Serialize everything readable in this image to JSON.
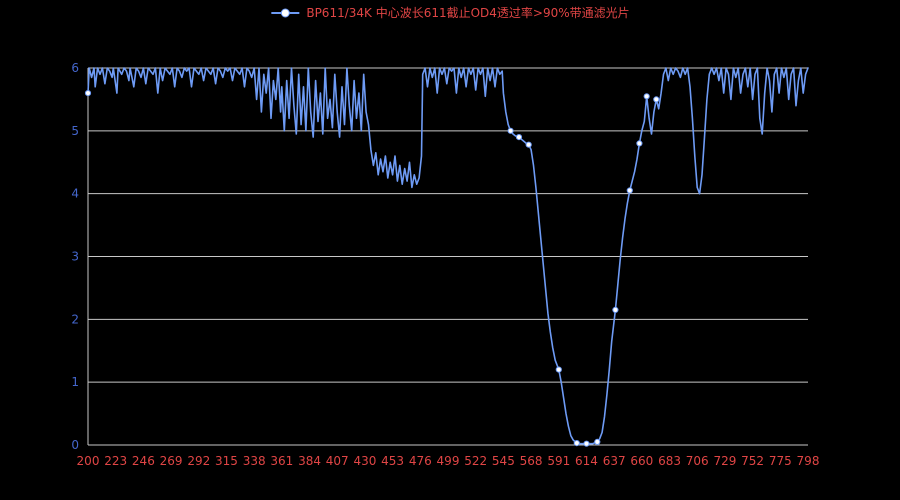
{
  "legend": {
    "label": "BP611/34K 中心波长611截止OD4透过率>90%带通滤光片"
  },
  "chart_data": {
    "type": "line",
    "title": "BP611/34K 中心波长611截止OD4透过率>90%带通滤光片",
    "xlabel": "",
    "ylabel": "",
    "xlim": [
      200,
      798
    ],
    "ylim": [
      0,
      6
    ],
    "grid": "horizontal",
    "legend_position": "top-center",
    "xticks": [
      200,
      223,
      246,
      269,
      292,
      315,
      338,
      361,
      384,
      407,
      430,
      453,
      476,
      499,
      522,
      545,
      568,
      591,
      614,
      637,
      660,
      683,
      706,
      729,
      752,
      775,
      798
    ],
    "yticks": [
      0,
      1,
      2,
      3,
      4,
      5,
      6
    ],
    "colors": {
      "background": "#000000",
      "line": "#6e9bf5",
      "marker_fill": "#ffffff",
      "grid": "#c8c8c8",
      "ytick": "#4466cc",
      "xtick": "#e04545",
      "legend_text": "#e04545"
    },
    "series": [
      {
        "name": "BP611/34K 中心波长611截止OD4透过率>90%带通滤光片",
        "points": [
          [
            200,
            5.6
          ],
          [
            201,
            6
          ],
          [
            203,
            5.85
          ],
          [
            205,
            6
          ],
          [
            206,
            5.7
          ],
          [
            208,
            6
          ],
          [
            210,
            5.9
          ],
          [
            212,
            6
          ],
          [
            214,
            5.75
          ],
          [
            216,
            6
          ],
          [
            218,
            5.95
          ],
          [
            220,
            5.85
          ],
          [
            221,
            6
          ],
          [
            224,
            5.6
          ],
          [
            225,
            6
          ],
          [
            228,
            5.9
          ],
          [
            230,
            6
          ],
          [
            232,
            5.95
          ],
          [
            234,
            5.8
          ],
          [
            235,
            6
          ],
          [
            238,
            5.7
          ],
          [
            240,
            6
          ],
          [
            242,
            5.95
          ],
          [
            244,
            5.85
          ],
          [
            246,
            6
          ],
          [
            248,
            5.75
          ],
          [
            250,
            6
          ],
          [
            252,
            5.95
          ],
          [
            254,
            5.9
          ],
          [
            256,
            6
          ],
          [
            258,
            5.6
          ],
          [
            260,
            6
          ],
          [
            262,
            5.8
          ],
          [
            264,
            6
          ],
          [
            266,
            5.95
          ],
          [
            268,
            5.9
          ],
          [
            270,
            6
          ],
          [
            272,
            5.7
          ],
          [
            274,
            6
          ],
          [
            276,
            5.95
          ],
          [
            278,
            5.85
          ],
          [
            280,
            6
          ],
          [
            282,
            5.95
          ],
          [
            284,
            6
          ],
          [
            286,
            5.7
          ],
          [
            288,
            6
          ],
          [
            290,
            5.95
          ],
          [
            292,
            5.9
          ],
          [
            294,
            6
          ],
          [
            296,
            5.8
          ],
          [
            298,
            6
          ],
          [
            300,
            5.95
          ],
          [
            302,
            5.9
          ],
          [
            304,
            6
          ],
          [
            306,
            5.75
          ],
          [
            308,
            6
          ],
          [
            310,
            5.95
          ],
          [
            312,
            5.85
          ],
          [
            314,
            6
          ],
          [
            316,
            5.95
          ],
          [
            318,
            6
          ],
          [
            320,
            5.8
          ],
          [
            322,
            6
          ],
          [
            324,
            5.95
          ],
          [
            326,
            5.9
          ],
          [
            328,
            6
          ],
          [
            330,
            5.7
          ],
          [
            332,
            6
          ],
          [
            334,
            5.95
          ],
          [
            336,
            5.85
          ],
          [
            338,
            6
          ],
          [
            340,
            5.5
          ],
          [
            342,
            6
          ],
          [
            344,
            5.3
          ],
          [
            346,
            5.9
          ],
          [
            348,
            5.6
          ],
          [
            350,
            6
          ],
          [
            352,
            5.2
          ],
          [
            354,
            5.8
          ],
          [
            356,
            5.5
          ],
          [
            358,
            6
          ],
          [
            360,
            5.3
          ],
          [
            361,
            5.7
          ],
          [
            363,
            5.0
          ],
          [
            365,
            5.8
          ],
          [
            367,
            5.2
          ],
          [
            369,
            6
          ],
          [
            371,
            5.4
          ],
          [
            373,
            4.95
          ],
          [
            375,
            5.9
          ],
          [
            377,
            5.1
          ],
          [
            379,
            5.7
          ],
          [
            381,
            5.0
          ],
          [
            383,
            6
          ],
          [
            385,
            5.3
          ],
          [
            387,
            4.9
          ],
          [
            389,
            5.8
          ],
          [
            391,
            5.15
          ],
          [
            393,
            5.6
          ],
          [
            395,
            4.95
          ],
          [
            397,
            6
          ],
          [
            399,
            5.2
          ],
          [
            401,
            5.5
          ],
          [
            403,
            5.05
          ],
          [
            405,
            5.9
          ],
          [
            407,
            5.3
          ],
          [
            409,
            4.9
          ],
          [
            411,
            5.7
          ],
          [
            413,
            5.1
          ],
          [
            415,
            6
          ],
          [
            417,
            5.4
          ],
          [
            419,
            5.0
          ],
          [
            421,
            5.8
          ],
          [
            423,
            5.2
          ],
          [
            425,
            5.6
          ],
          [
            427,
            5.0
          ],
          [
            429,
            5.9
          ],
          [
            431,
            5.3
          ],
          [
            433,
            5.1
          ],
          [
            435,
            4.7
          ],
          [
            437,
            4.45
          ],
          [
            439,
            4.65
          ],
          [
            441,
            4.3
          ],
          [
            443,
            4.55
          ],
          [
            445,
            4.35
          ],
          [
            447,
            4.6
          ],
          [
            449,
            4.25
          ],
          [
            451,
            4.5
          ],
          [
            453,
            4.3
          ],
          [
            455,
            4.6
          ],
          [
            457,
            4.2
          ],
          [
            459,
            4.45
          ],
          [
            461,
            4.15
          ],
          [
            463,
            4.4
          ],
          [
            465,
            4.2
          ],
          [
            467,
            4.5
          ],
          [
            469,
            4.1
          ],
          [
            471,
            4.3
          ],
          [
            473,
            4.15
          ],
          [
            475,
            4.25
          ],
          [
            477,
            4.6
          ],
          [
            478,
            5.9
          ],
          [
            480,
            6
          ],
          [
            482,
            5.7
          ],
          [
            484,
            6
          ],
          [
            486,
            5.85
          ],
          [
            488,
            6
          ],
          [
            490,
            5.6
          ],
          [
            492,
            6
          ],
          [
            494,
            5.9
          ],
          [
            496,
            6
          ],
          [
            498,
            5.75
          ],
          [
            500,
            6
          ],
          [
            502,
            5.95
          ],
          [
            504,
            6
          ],
          [
            506,
            5.6
          ],
          [
            508,
            6
          ],
          [
            510,
            5.85
          ],
          [
            512,
            6
          ],
          [
            514,
            5.7
          ],
          [
            516,
            6
          ],
          [
            518,
            5.9
          ],
          [
            520,
            6
          ],
          [
            522,
            5.65
          ],
          [
            524,
            6
          ],
          [
            526,
            5.9
          ],
          [
            528,
            6
          ],
          [
            530,
            5.55
          ],
          [
            532,
            6
          ],
          [
            534,
            5.8
          ],
          [
            536,
            6
          ],
          [
            538,
            5.7
          ],
          [
            540,
            6
          ],
          [
            542,
            5.9
          ],
          [
            544,
            5.95
          ],
          [
            545,
            5.6
          ],
          [
            547,
            5.3
          ],
          [
            549,
            5.1
          ],
          [
            551,
            5.0
          ],
          [
            553,
            4.95
          ],
          [
            555,
            4.92
          ],
          [
            558,
            4.9
          ],
          [
            561,
            4.85
          ],
          [
            564,
            4.8
          ],
          [
            566,
            4.78
          ],
          [
            568,
            4.7
          ],
          [
            570,
            4.45
          ],
          [
            572,
            4.1
          ],
          [
            574,
            3.7
          ],
          [
            576,
            3.3
          ],
          [
            578,
            2.9
          ],
          [
            580,
            2.5
          ],
          [
            582,
            2.1
          ],
          [
            584,
            1.8
          ],
          [
            586,
            1.55
          ],
          [
            588,
            1.35
          ],
          [
            591,
            1.2
          ],
          [
            593,
            1.0
          ],
          [
            595,
            0.75
          ],
          [
            597,
            0.5
          ],
          [
            599,
            0.3
          ],
          [
            601,
            0.15
          ],
          [
            603,
            0.08
          ],
          [
            606,
            0.03
          ],
          [
            609,
            0.02
          ],
          [
            614,
            0.02
          ],
          [
            619,
            0.02
          ],
          [
            623,
            0.05
          ],
          [
            625,
            0.1
          ],
          [
            627,
            0.2
          ],
          [
            629,
            0.45
          ],
          [
            631,
            0.8
          ],
          [
            633,
            1.2
          ],
          [
            635,
            1.65
          ],
          [
            638,
            2.15
          ],
          [
            640,
            2.55
          ],
          [
            642,
            2.95
          ],
          [
            644,
            3.3
          ],
          [
            646,
            3.6
          ],
          [
            648,
            3.85
          ],
          [
            650,
            4.05
          ],
          [
            652,
            4.2
          ],
          [
            654,
            4.35
          ],
          [
            656,
            4.55
          ],
          [
            658,
            4.8
          ],
          [
            660,
            5.0
          ],
          [
            662,
            5.15
          ],
          [
            664,
            5.55
          ],
          [
            666,
            5.2
          ],
          [
            668,
            4.95
          ],
          [
            670,
            5.3
          ],
          [
            672,
            5.5
          ],
          [
            674,
            5.35
          ],
          [
            676,
            5.6
          ],
          [
            678,
            5.9
          ],
          [
            680,
            6
          ],
          [
            682,
            5.8
          ],
          [
            684,
            6
          ],
          [
            686,
            5.9
          ],
          [
            688,
            6
          ],
          [
            690,
            5.95
          ],
          [
            692,
            5.85
          ],
          [
            694,
            6
          ],
          [
            696,
            5.9
          ],
          [
            698,
            6
          ],
          [
            700,
            5.7
          ],
          [
            702,
            5.2
          ],
          [
            704,
            4.6
          ],
          [
            706,
            4.1
          ],
          [
            708,
            4.0
          ],
          [
            710,
            4.3
          ],
          [
            712,
            4.9
          ],
          [
            714,
            5.5
          ],
          [
            716,
            5.9
          ],
          [
            718,
            6
          ],
          [
            720,
            5.9
          ],
          [
            722,
            6
          ],
          [
            724,
            5.8
          ],
          [
            726,
            6
          ],
          [
            728,
            5.6
          ],
          [
            730,
            6
          ],
          [
            732,
            5.9
          ],
          [
            734,
            5.5
          ],
          [
            736,
            6
          ],
          [
            738,
            5.85
          ],
          [
            740,
            6
          ],
          [
            742,
            5.6
          ],
          [
            744,
            5.9
          ],
          [
            746,
            6
          ],
          [
            748,
            5.7
          ],
          [
            750,
            6
          ],
          [
            752,
            5.5
          ],
          [
            754,
            5.9
          ],
          [
            756,
            6
          ],
          [
            758,
            5.2
          ],
          [
            760,
            4.95
          ],
          [
            762,
            5.6
          ],
          [
            764,
            6
          ],
          [
            766,
            5.8
          ],
          [
            768,
            5.3
          ],
          [
            770,
            5.9
          ],
          [
            772,
            6
          ],
          [
            774,
            5.6
          ],
          [
            776,
            6
          ],
          [
            778,
            5.85
          ],
          [
            780,
            6
          ],
          [
            782,
            5.5
          ],
          [
            784,
            5.9
          ],
          [
            786,
            6
          ],
          [
            788,
            5.4
          ],
          [
            790,
            5.8
          ],
          [
            792,
            6
          ],
          [
            794,
            5.6
          ],
          [
            796,
            5.9
          ],
          [
            798,
            6
          ]
        ],
        "markers": [
          [
            200,
            5.6
          ],
          [
            551,
            5.0
          ],
          [
            558,
            4.9
          ],
          [
            566,
            4.78
          ],
          [
            591,
            1.2
          ],
          [
            606,
            0.03
          ],
          [
            614,
            0.02
          ],
          [
            623,
            0.05
          ],
          [
            638,
            2.15
          ],
          [
            650,
            4.05
          ],
          [
            658,
            4.8
          ],
          [
            664,
            5.55
          ],
          [
            672,
            5.5
          ]
        ]
      }
    ]
  }
}
